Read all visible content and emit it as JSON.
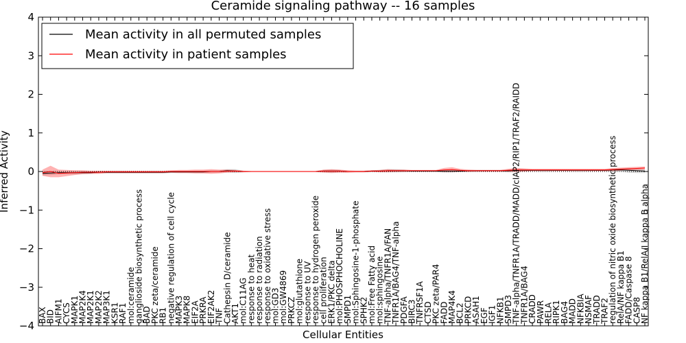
{
  "chart_data": {
    "type": "line",
    "title": "Ceramide signaling pathway -- 16 samples",
    "xlabel": "Cellular Entities",
    "ylabel": "Inferred Activity",
    "ylim": [
      -4,
      4
    ],
    "yticks": [
      4,
      3,
      2,
      1,
      0,
      -1,
      -2,
      -3,
      -4
    ],
    "ytick_labels": [
      "4",
      "3",
      "2",
      "1",
      "0",
      "−1",
      "−2",
      "−3",
      "−4"
    ],
    "legend": {
      "position": "top-left",
      "entries": [
        {
          "label": "Mean activity in all permuted samples",
          "color": "#000000"
        },
        {
          "label": "Mean activity in patient samples",
          "color": "#ff0000"
        }
      ]
    },
    "reference_line": {
      "y": 0,
      "style": "dotted"
    },
    "categories": [
      "BAX",
      "BID",
      "AIFM1",
      "CYCS",
      "MAPK1",
      "MAP2K4",
      "MAP2K1",
      "MAP2K2",
      "MAP3K1",
      "KSR1",
      "RAF1",
      "mol:ceramide",
      "ganglioside biosynthetic process",
      "BAD",
      "PKC zeta/ceramide",
      "RB1",
      "negative regulation of cell cycle",
      "MAPK3",
      "MAPK8",
      "EIF2A",
      "PRKRA",
      "EIF2AK2",
      "TNF",
      "Cathepsin D/ceramide",
      "AKT1",
      "mol:C11AG",
      "response to heat",
      "response to radiation",
      "response to oxidative stress",
      "mol:GD3",
      "mol:GW4869",
      "PRKCZ",
      "mol:glutathione",
      "response to UV",
      "response to hydrogen peroxide",
      "cell proliferation",
      "ERK1/PKC delta",
      "mol:PHOSPHOCHOLINE",
      "SMPD1",
      "mol:Sphingosine-1-phosphate",
      "SPHK2",
      "mol:Free Fatty acid",
      "mol:sphingosine",
      "TNF-alpha/TNFR1A/FAN",
      "TNFR1A/BAG4/TNF-alpha",
      "PDGFA",
      "BIRC3",
      "TNFRSF1A",
      "CTSD",
      "PKC zeta/PAR4",
      "FADD",
      "MAP4K4",
      "BCL2",
      "PRKCD",
      "ASAH1",
      "EGF",
      "IGF1",
      "NFKB1",
      "SMPD3",
      "TNF-alpha/TNFR1A/TRADD/MADD/cIAP2/RIP1/TRAF2/RAIDD",
      "TNFR1A/BAG4",
      "CRADD",
      "PAWR",
      "RELA",
      "RIPK1",
      "BAG4",
      "MADD",
      "NFKBIA",
      "NSMAF",
      "TRADD",
      "TRAF2",
      "regulation of nitric oxide biosynthetic process",
      "RelA/NF kappa B1",
      "FADD/Caspase 8",
      "CASP8",
      "NF kappa B1/RelA/I kappa B alpha"
    ],
    "series": [
      {
        "name": "Mean activity in all permuted samples",
        "color": "#000000",
        "values": [
          -0.05,
          -0.04,
          -0.03,
          -0.03,
          -0.03,
          -0.03,
          -0.03,
          -0.02,
          -0.02,
          -0.02,
          -0.02,
          -0.02,
          -0.02,
          -0.02,
          -0.02,
          -0.02,
          -0.01,
          -0.01,
          -0.01,
          -0.01,
          -0.01,
          0.0,
          0.0,
          0.02,
          0.01,
          0.0,
          0.0,
          0.0,
          0.0,
          0.0,
          0.0,
          0.0,
          0.0,
          0.0,
          0.0,
          0.01,
          0.01,
          0.01,
          0.0,
          0.0,
          0.0,
          0.01,
          0.01,
          0.02,
          0.02,
          0.02,
          0.01,
          0.01,
          0.01,
          0.01,
          0.01,
          0.01,
          0.01,
          0.02,
          0.02,
          0.02,
          0.02,
          0.02,
          0.02,
          0.03,
          0.03,
          0.03,
          0.03,
          0.03,
          0.03,
          0.03,
          0.03,
          0.03,
          0.03,
          0.03,
          0.03,
          0.04,
          0.04,
          0.03,
          0.02,
          0.01
        ],
        "band_halfwidth": [
          0.05,
          0.05,
          0.04,
          0.04,
          0.04,
          0.03,
          0.03,
          0.03,
          0.03,
          0.03,
          0.03,
          0.03,
          0.03,
          0.03,
          0.03,
          0.03,
          0.03,
          0.03,
          0.03,
          0.03,
          0.03,
          0.03,
          0.03,
          0.04,
          0.05,
          0.02,
          0.01,
          0.01,
          0.01,
          0.01,
          0.01,
          0.01,
          0.01,
          0.01,
          0.01,
          0.03,
          0.04,
          0.03,
          0.02,
          0.02,
          0.02,
          0.02,
          0.03,
          0.04,
          0.04,
          0.03,
          0.02,
          0.02,
          0.02,
          0.02,
          0.04,
          0.04,
          0.02,
          0.02,
          0.02,
          0.02,
          0.02,
          0.02,
          0.03,
          0.04,
          0.03,
          0.02,
          0.02,
          0.02,
          0.02,
          0.02,
          0.02,
          0.02,
          0.02,
          0.02,
          0.02,
          0.03,
          0.04,
          0.06,
          0.06,
          0.05
        ]
      },
      {
        "name": "Mean activity in patient samples",
        "color": "#ff0000",
        "values": [
          -0.03,
          0.0,
          -0.05,
          -0.04,
          -0.03,
          -0.02,
          -0.02,
          -0.02,
          -0.01,
          -0.01,
          -0.01,
          -0.01,
          -0.01,
          -0.01,
          -0.01,
          -0.01,
          0.0,
          0.0,
          0.0,
          0.0,
          0.0,
          0.0,
          0.0,
          0.01,
          0.01,
          0.0,
          0.0,
          0.0,
          0.0,
          0.0,
          0.0,
          0.0,
          0.0,
          0.0,
          0.0,
          0.01,
          0.01,
          0.01,
          0.0,
          0.0,
          0.0,
          0.01,
          0.01,
          0.02,
          0.02,
          0.02,
          0.02,
          0.02,
          0.02,
          0.02,
          0.04,
          0.05,
          0.03,
          0.02,
          0.02,
          0.02,
          0.02,
          0.02,
          0.03,
          0.04,
          0.04,
          0.04,
          0.04,
          0.04,
          0.04,
          0.04,
          0.04,
          0.04,
          0.04,
          0.04,
          0.04,
          0.05,
          0.06,
          0.07,
          0.08,
          0.09
        ],
        "band_halfwidth": [
          0.08,
          0.15,
          0.1,
          0.08,
          0.06,
          0.05,
          0.04,
          0.04,
          0.03,
          0.03,
          0.03,
          0.03,
          0.03,
          0.03,
          0.03,
          0.03,
          0.03,
          0.04,
          0.04,
          0.05,
          0.05,
          0.06,
          0.05,
          0.04,
          0.03,
          0.02,
          0.01,
          0.01,
          0.01,
          0.01,
          0.01,
          0.01,
          0.01,
          0.01,
          0.01,
          0.04,
          0.05,
          0.04,
          0.03,
          0.02,
          0.02,
          0.02,
          0.03,
          0.04,
          0.03,
          0.03,
          0.02,
          0.02,
          0.02,
          0.02,
          0.05,
          0.06,
          0.04,
          0.03,
          0.02,
          0.02,
          0.02,
          0.02,
          0.04,
          0.05,
          0.04,
          0.03,
          0.03,
          0.03,
          0.03,
          0.03,
          0.03,
          0.03,
          0.03,
          0.03,
          0.03,
          0.04,
          0.04,
          0.04,
          0.04,
          0.04
        ]
      }
    ]
  }
}
